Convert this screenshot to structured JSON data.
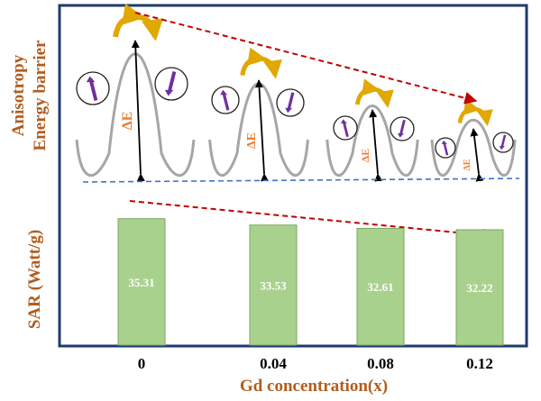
{
  "colors": {
    "frame": "#1f3a6e",
    "bar_fill": "#a9d18e",
    "bar_stroke": "#7aa85f",
    "label_brown": "#b05d1e",
    "red_arrow": "#c00000",
    "baseline_blue": "#4472c4",
    "curve_gray": "#a6a6a6",
    "spin_purple": "#7030a0",
    "arrow_gold": "#e0a800",
    "delta_e": "#ed7d31"
  },
  "upper_panel": {
    "ylabel_line1": "Anisotropy",
    "ylabel_line2": "Energy barrier",
    "delta_e_label": "ΔE",
    "icons": [
      "energy-barrier-curve",
      "spin-up-arrow",
      "spin-down-arrow",
      "curved-flip-arrow",
      "trend-arrow"
    ]
  },
  "chart_data": {
    "type": "bar",
    "categories": [
      "0",
      "0.04",
      "0.08",
      "0.12"
    ],
    "values": [
      35.31,
      33.53,
      32.61,
      32.22
    ],
    "value_labels": [
      "35.31",
      "33.53",
      "32.61",
      "32.22"
    ],
    "title": "",
    "xlabel": "Gd concentration(x)",
    "ylabel": "SAR (Watt/g)",
    "ylim": [
      0,
      38.5
    ],
    "grid": false,
    "legend": "none"
  }
}
